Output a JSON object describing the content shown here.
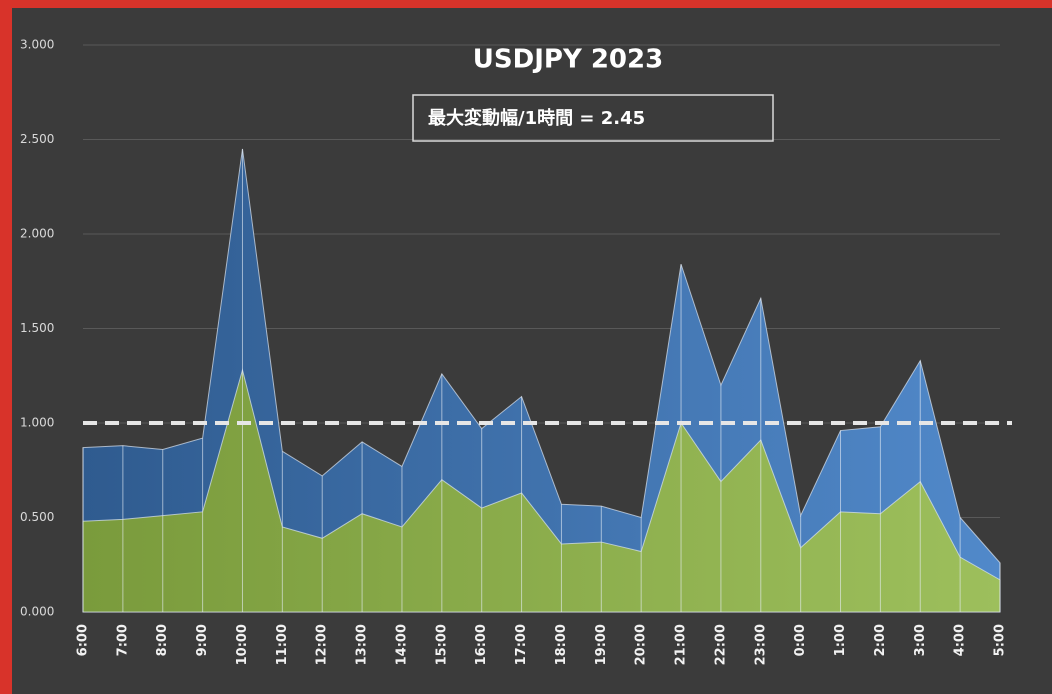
{
  "chart_data": {
    "type": "area",
    "title": "USDJPY 2023",
    "annotation": "最大変動幅/1時間 = 2.45",
    "categories": [
      "6:00",
      "7:00",
      "8:00",
      "9:00",
      "10:00",
      "11:00",
      "12:00",
      "13:00",
      "14:00",
      "15:00",
      "16:00",
      "17:00",
      "18:00",
      "19:00",
      "20:00",
      "21:00",
      "22:00",
      "23:00",
      "0:00",
      "1:00",
      "2:00",
      "3:00",
      "4:00",
      "5:00"
    ],
    "series": [
      {
        "color": "#4a7fc0",
        "values": [
          0.87,
          0.88,
          0.86,
          0.92,
          2.45,
          0.85,
          0.72,
          0.9,
          0.77,
          1.26,
          0.97,
          1.14,
          0.57,
          0.56,
          0.5,
          1.84,
          1.2,
          1.66,
          0.51,
          0.96,
          0.98,
          1.33,
          0.5,
          0.26
        ]
      },
      {
        "color": "#8fb04f",
        "values": [
          0.48,
          0.49,
          0.51,
          0.53,
          1.28,
          0.45,
          0.39,
          0.52,
          0.45,
          0.7,
          0.55,
          0.63,
          0.36,
          0.37,
          0.32,
          1.0,
          0.69,
          0.91,
          0.34,
          0.53,
          0.52,
          0.69,
          0.29,
          0.17
        ]
      }
    ],
    "reference_line": 1.0,
    "ylim": [
      0,
      3
    ],
    "yticks": [
      {
        "value": 0,
        "label": "0.000"
      },
      {
        "value": 0.5,
        "label": "0.500"
      },
      {
        "value": 1,
        "label": "1.000"
      },
      {
        "value": 1.5,
        "label": "1.500"
      },
      {
        "value": 2,
        "label": "2.000"
      },
      {
        "value": 2.5,
        "label": "2.500"
      },
      {
        "value": 3,
        "label": "3.000"
      }
    ],
    "grid": true
  }
}
